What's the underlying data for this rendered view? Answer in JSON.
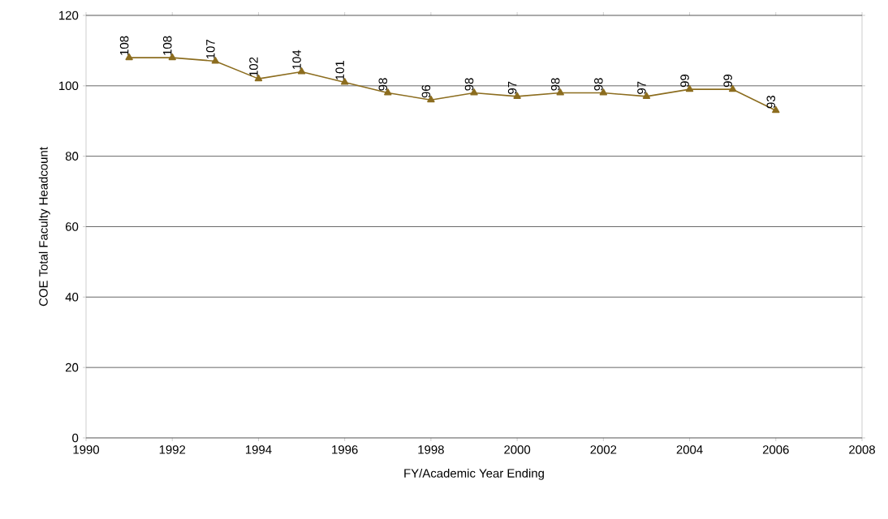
{
  "chart_data": {
    "type": "line",
    "xlabel": "FY/Academic Year Ending",
    "ylabel": "COE Total Faculty Headcount",
    "x": [
      1991,
      1992,
      1993,
      1994,
      1995,
      1996,
      1997,
      1998,
      1999,
      2000,
      2001,
      2002,
      2003,
      2004,
      2005,
      2006
    ],
    "values": [
      108,
      108,
      107,
      102,
      104,
      101,
      98,
      96,
      98,
      97,
      98,
      98,
      97,
      99,
      99,
      93
    ],
    "color": "#8c6d1f",
    "marker": "triangle",
    "line_style": "solid",
    "data_labels": true,
    "grid": "y",
    "xlim": [
      1990,
      2008
    ],
    "xticks": [
      1990,
      1992,
      1994,
      1996,
      1998,
      2000,
      2002,
      2004,
      2006,
      2008
    ],
    "ylim": [
      0,
      120
    ],
    "yticks": [
      0,
      20,
      40,
      60,
      80,
      100,
      120
    ]
  }
}
